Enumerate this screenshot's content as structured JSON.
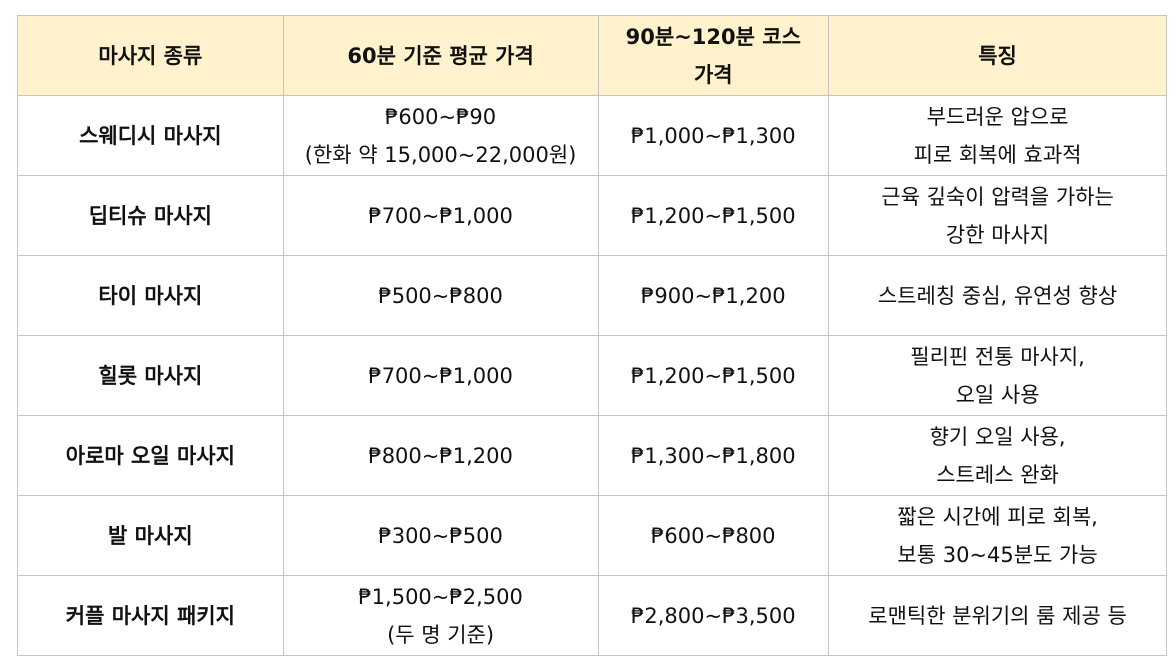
{
  "table": {
    "headers": [
      "마사지 종류",
      "60분 기준 평균 가격",
      "90분~120분 코스\n가격",
      "특징"
    ],
    "rows": [
      {
        "type": "스웨디시 마사지",
        "price_60": "₱600~₱90\n(한화 약 15,000~22,000원)",
        "price_course": "₱1,000~₱1,300",
        "feature": "부드러운 압으로\n피로 회복에 효과적"
      },
      {
        "type": "딥티슈 마사지",
        "price_60": "₱700~₱1,000",
        "price_course": "₱1,200~₱1,500",
        "feature": "근육 깊숙이 압력을 가하는\n강한 마사지"
      },
      {
        "type": "타이 마사지",
        "price_60": "₱500~₱800",
        "price_course": "₱900~₱1,200",
        "feature": "스트레칭 중심, 유연성 향상"
      },
      {
        "type": "힐롯 마사지",
        "price_60": "₱700~₱1,000",
        "price_course": "₱1,200~₱1,500",
        "feature": "필리핀 전통 마사지,\n오일 사용"
      },
      {
        "type": "아로마 오일 마사지",
        "price_60": "₱800~₱1,200",
        "price_course": "₱1,300~₱1,800",
        "feature": "향기 오일 사용,\n스트레스 완화"
      },
      {
        "type": "발 마사지",
        "price_60": "₱300~₱500",
        "price_course": "₱600~₱800",
        "feature": "짧은 시간에 피로 회복,\n보통 30~45분도 가능"
      },
      {
        "type": "커플 마사지 패키지",
        "price_60": "₱1,500~₱2,500\n(두 명 기준)",
        "price_course": "₱2,800~₱3,500",
        "feature": "로맨틱한 분위기의 룸 제공 등"
      }
    ],
    "colors": {
      "header_bg": "#fff2cc",
      "border": "#c4c4c4"
    }
  }
}
